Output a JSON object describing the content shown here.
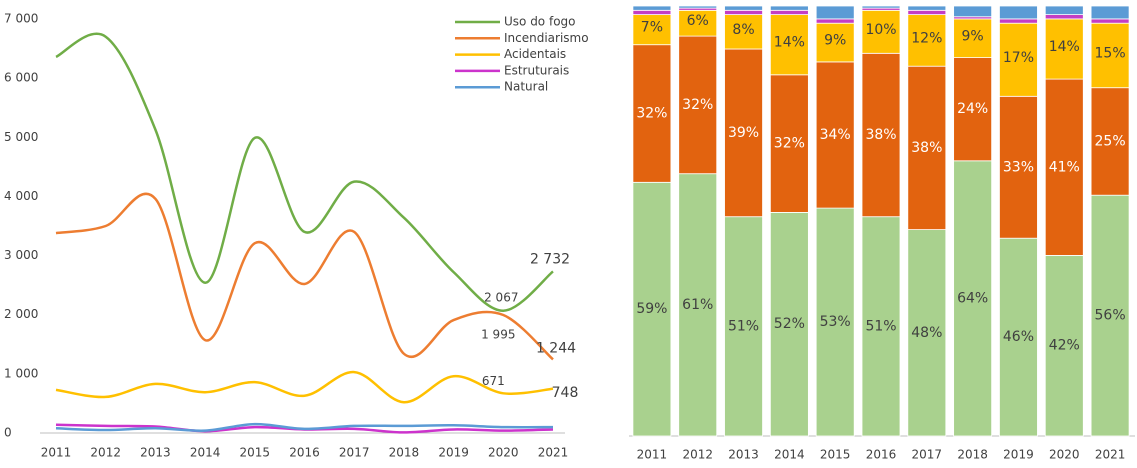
{
  "chart_data": [
    {
      "type": "line",
      "categories": [
        "2011",
        "2012",
        "2013",
        "2014",
        "2015",
        "2016",
        "2017",
        "2018",
        "2019",
        "2020",
        "2021"
      ],
      "ylim": [
        0,
        7000
      ],
      "yticks": [
        0,
        {
          "value": 1000,
          "label": "1 000"
        },
        {
          "value": 2000,
          "label": "2 000"
        },
        {
          "value": 3000,
          "label": "3 000"
        },
        {
          "value": 4000,
          "label": "4 000"
        },
        {
          "value": 5000,
          "label": "5 000"
        },
        {
          "value": 6000,
          "label": "6 000"
        },
        {
          "value": 7000,
          "label": "7 000"
        }
      ],
      "legend": "top-right",
      "series": [
        {
          "name": "Uso do fogo",
          "color": "#70ad47",
          "values": [
            6360,
            6700,
            5130,
            2540,
            4990,
            3400,
            4250,
            3640,
            2720,
            2067,
            2732
          ],
          "value_labels": [
            null,
            null,
            null,
            null,
            null,
            null,
            null,
            null,
            null,
            "2 067",
            "2 732"
          ]
        },
        {
          "name": "Incendiarismo",
          "color": "#ed7d31",
          "values": [
            3380,
            3500,
            3960,
            1570,
            3210,
            2520,
            3400,
            1340,
            1910,
            1995,
            1244
          ],
          "value_labels": [
            null,
            null,
            null,
            null,
            null,
            null,
            null,
            null,
            null,
            "1 995",
            "1 244"
          ]
        },
        {
          "name": "Acidentais",
          "color": "#ffc000",
          "values": [
            730,
            610,
            830,
            690,
            860,
            630,
            1030,
            520,
            960,
            671,
            748
          ],
          "value_labels": [
            null,
            null,
            null,
            null,
            null,
            null,
            null,
            null,
            null,
            "671",
            "748"
          ]
        },
        {
          "name": "Estruturais",
          "color": "#cc33cc",
          "values": [
            140,
            120,
            110,
            30,
            100,
            60,
            70,
            10,
            60,
            40,
            60
          ]
        },
        {
          "name": "Natural",
          "color": "#5b9bd5",
          "values": [
            80,
            50,
            80,
            40,
            150,
            70,
            120,
            120,
            130,
            100,
            100
          ]
        }
      ]
    },
    {
      "type": "stacked_bar",
      "categories": [
        "2011",
        "2012",
        "2013",
        "2014",
        "2015",
        "2016",
        "2017",
        "2018",
        "2019",
        "2020",
        "2021"
      ],
      "ylim": [
        0,
        100
      ],
      "series": [
        {
          "color": "#a9d18e",
          "values": [
            59,
            61,
            51,
            52,
            53,
            51,
            48,
            64,
            46,
            42,
            56
          ],
          "value_labels": [
            "59%",
            "61%",
            "51%",
            "52%",
            "53%",
            "51%",
            "48%",
            "64%",
            "46%",
            "42%",
            "56%"
          ]
        },
        {
          "color": "#e2630f",
          "values": [
            32,
            32,
            39,
            32,
            34,
            38,
            38,
            24,
            33,
            41,
            25
          ],
          "value_labels": [
            "32%",
            "32%",
            "39%",
            "32%",
            "34%",
            "38%",
            "38%",
            "24%",
            "33%",
            "41%",
            "25%"
          ]
        },
        {
          "color": "#ffc000",
          "values": [
            7,
            6,
            8,
            14,
            9,
            10,
            12,
            9,
            17,
            14,
            15
          ],
          "value_labels": [
            "7%",
            "6%",
            "8%",
            "14%",
            "9%",
            "10%",
            "12%",
            "9%",
            "17%",
            "14%",
            "15%"
          ]
        },
        {
          "color": "#c43ec4",
          "values": [
            1,
            0.5,
            1,
            1,
            1,
            0.5,
            1,
            0.5,
            1,
            1,
            1
          ]
        },
        {
          "color": "#5b9bd5",
          "values": [
            1,
            0.5,
            1,
            1,
            3,
            0.5,
            1,
            2.5,
            3,
            2,
            3
          ]
        }
      ]
    }
  ]
}
